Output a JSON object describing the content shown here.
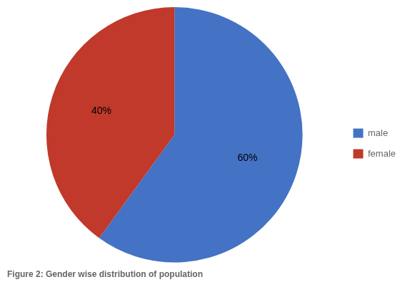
{
  "chart_data": {
    "type": "pie",
    "title": "Figure 2: Gender wise distribution of population",
    "categories": [
      "male",
      "female"
    ],
    "values": [
      60,
      40
    ],
    "value_labels": [
      "60%",
      "40%"
    ],
    "colors": [
      "#4472C4",
      "#C0392B"
    ],
    "data_labels": true,
    "legend": "right"
  }
}
